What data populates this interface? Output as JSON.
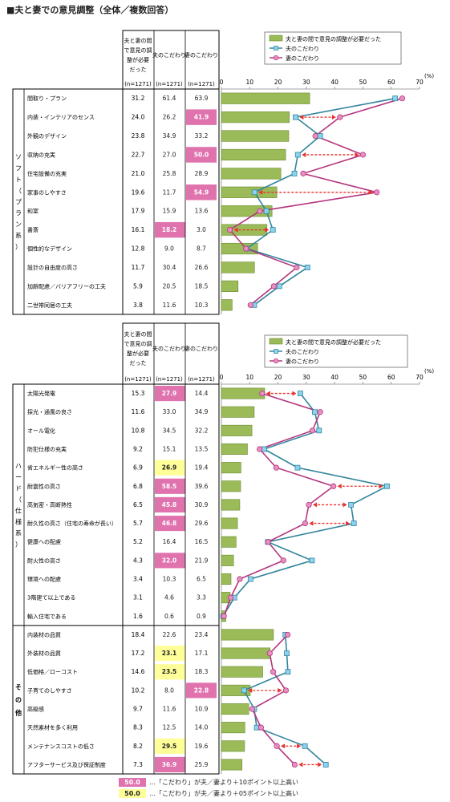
{
  "title": "■夫と妻での意見調整（全体／複数回答）",
  "colors": {
    "bar": "#9bbb59",
    "bar_border": "#6b8a30",
    "husband": "#31859c",
    "husband_marker": "#8dd3f0",
    "wife": "#b5357e",
    "wife_marker": "#e78fc0",
    "highlight_pink": "#e072ae",
    "highlight_yellow": "#ffff99",
    "arrow": "#e8302c"
  },
  "table_headers": {
    "col1": [
      "夫と妻の間",
      "で意見の調",
      "整が必要",
      "だった"
    ],
    "col2": "夫のこだわり",
    "col3": "妻のこだわり",
    "n": "(n=1271)"
  },
  "legend": {
    "bar": "夫と妻の間で意見の調整が必要だった",
    "husband": "夫のこだわり",
    "wife": "妻のこだわり"
  },
  "unit": "(%)",
  "sections": {
    "soft": [
      "ソ",
      "フ",
      "ト",
      "（",
      "プ",
      "ラ",
      "ン",
      "系",
      "）"
    ],
    "hard": [
      "ハ",
      "ー",
      "ド",
      "（",
      "仕",
      "様",
      "系",
      "）"
    ],
    "other": [
      "そ",
      "の",
      "他"
    ]
  },
  "footnotes": {
    "pink_value": "50.0",
    "pink_text": "…「こだわり」が夫／妻より＋10ポイント以上高い",
    "yellow_value": "50.0",
    "yellow_text": "…「こだわり」が夫／妻より＋05ポイント以上高い"
  },
  "chart_data": [
    {
      "type": "bar",
      "xlim": [
        0,
        70
      ],
      "ticks": [
        0,
        10,
        20,
        30,
        40,
        50,
        60,
        70
      ],
      "categories": [
        "間取り・プラン",
        "内装・インテリアのセンス",
        "外観のデザイン",
        "収納の充実",
        "住宅設備の充実",
        "家事のしやすさ",
        "和室",
        "書斎",
        "個性的なデザイン",
        "設計の自由度の高さ",
        "加齢配慮／バリアフリーの工夫",
        "二世帯同居の工夫"
      ],
      "series": [
        {
          "name": "夫と妻の間で意見の調整が必要だった",
          "values": [
            31.2,
            24.0,
            23.8,
            22.7,
            21.0,
            19.6,
            17.9,
            16.1,
            12.8,
            11.7,
            5.9,
            3.8
          ]
        },
        {
          "name": "夫のこだわり",
          "values": [
            61.4,
            26.2,
            34.9,
            27.0,
            25.8,
            11.7,
            15.9,
            18.2,
            9.0,
            30.4,
            20.5,
            11.6
          ]
        },
        {
          "name": "妻のこだわり",
          "values": [
            63.9,
            41.9,
            33.2,
            50.0,
            28.9,
            54.9,
            13.6,
            3.0,
            8.7,
            26.6,
            18.5,
            10.3
          ]
        }
      ],
      "highlights": {
        "husband": [
          null,
          null,
          null,
          null,
          null,
          null,
          null,
          "pink",
          null,
          null,
          null,
          null
        ],
        "wife": [
          null,
          "pink",
          null,
          "pink",
          null,
          "pink",
          null,
          null,
          null,
          null,
          null,
          null
        ]
      },
      "arrows": [
        1,
        3,
        5,
        7
      ]
    },
    {
      "type": "bar",
      "xlim": [
        0,
        70
      ],
      "ticks": [
        0,
        10,
        20,
        30,
        40,
        50,
        60,
        70
      ],
      "categories": [
        "太陽光発電",
        "採光・通風の良さ",
        "オール電化",
        "防犯仕様の充実",
        "省エネルギー性の高さ",
        "耐震性の高さ",
        "高気密・高断熱性",
        "耐久性の高さ（住宅の寿命が長い）",
        "健康への配慮",
        "耐火性の高さ",
        "環境への配慮",
        "3階建て以上である",
        "輸入住宅である",
        "内装材の品質",
        "外装材の品質",
        "低価格／ローコスト",
        "子育てのしやすさ",
        "高級感",
        "天然素材を多く利用",
        "メンテナンスコストの低さ",
        "アフターサービス及び保証制度"
      ],
      "series": [
        {
          "name": "夫と妻の間で意見の調整が必要だった",
          "values": [
            15.3,
            11.6,
            10.8,
            9.2,
            6.9,
            6.8,
            6.5,
            5.7,
            5.2,
            4.3,
            3.4,
            3.1,
            1.6,
            18.4,
            17.2,
            14.6,
            10.2,
            9.7,
            8.3,
            8.2,
            7.3
          ]
        },
        {
          "name": "夫のこだわり",
          "values": [
            27.9,
            33.0,
            34.5,
            15.1,
            26.9,
            58.5,
            45.8,
            46.8,
            16.4,
            32.0,
            10.3,
            4.6,
            0.6,
            22.6,
            23.1,
            23.5,
            8.0,
            11.6,
            12.5,
            29.5,
            36.9
          ]
        },
        {
          "name": "妻のこだわり",
          "values": [
            14.4,
            34.9,
            32.2,
            13.5,
            19.4,
            39.6,
            30.9,
            29.6,
            16.5,
            21.9,
            6.5,
            3.3,
            0.9,
            23.4,
            17.1,
            18.3,
            22.8,
            10.9,
            14.0,
            19.6,
            25.9
          ]
        }
      ],
      "highlights": {
        "husband": [
          "pink",
          null,
          null,
          null,
          "yellow",
          "pink",
          "pink",
          "pink",
          null,
          "pink",
          null,
          null,
          null,
          null,
          "yellow",
          "yellow",
          null,
          null,
          null,
          "yellow",
          "pink"
        ],
        "wife": [
          null,
          null,
          null,
          null,
          null,
          null,
          null,
          null,
          null,
          null,
          null,
          null,
          null,
          null,
          null,
          null,
          "pink",
          null,
          null,
          null,
          null
        ]
      },
      "arrows": [
        0,
        5,
        6,
        7,
        16,
        19,
        20
      ]
    }
  ]
}
